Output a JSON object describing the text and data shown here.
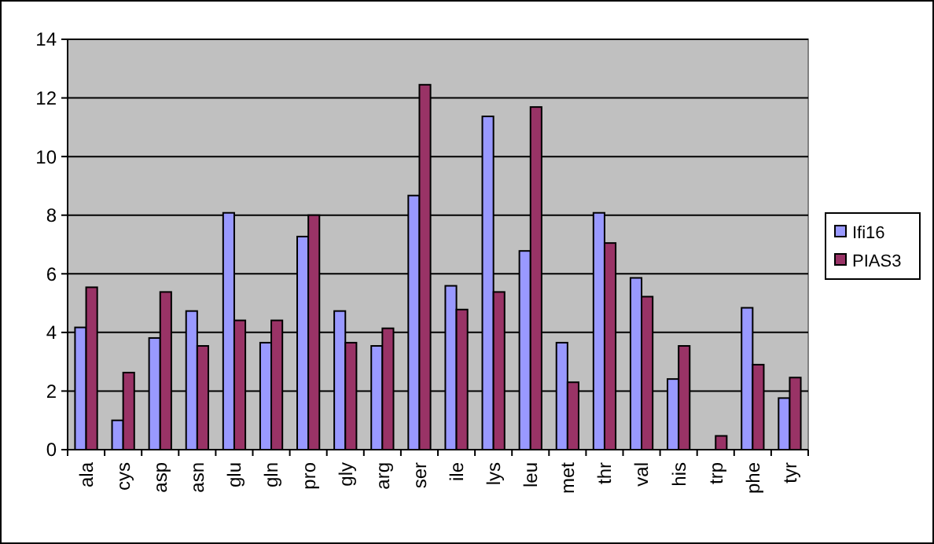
{
  "chart_data": {
    "type": "bar",
    "categories": [
      "ala",
      "cys",
      "asp",
      "asn",
      "glu",
      "gln",
      "pro",
      "gly",
      "arg",
      "ser",
      "ile",
      "lys",
      "leu",
      "met",
      "thr",
      "val",
      "his",
      "trp",
      "phe",
      "tyr"
    ],
    "series": [
      {
        "name": "Ifi16",
        "color": "#9999ff",
        "values": [
          4.17,
          1.0,
          3.81,
          4.73,
          8.08,
          3.65,
          7.27,
          4.73,
          3.54,
          8.67,
          5.59,
          11.37,
          6.78,
          3.65,
          8.08,
          5.86,
          2.41,
          0,
          4.84,
          1.76
        ]
      },
      {
        "name": "PIAS3",
        "color": "#993366",
        "values": [
          5.54,
          2.63,
          5.38,
          3.54,
          4.41,
          4.41,
          8.0,
          3.65,
          4.14,
          12.45,
          4.78,
          5.38,
          11.69,
          2.3,
          7.05,
          5.22,
          3.54,
          0.47,
          2.9,
          2.46
        ]
      }
    ],
    "ylim": [
      0,
      14
    ],
    "yticks": [
      0,
      2,
      4,
      6,
      8,
      10,
      12,
      14
    ],
    "grid": "y",
    "legend": "right"
  }
}
